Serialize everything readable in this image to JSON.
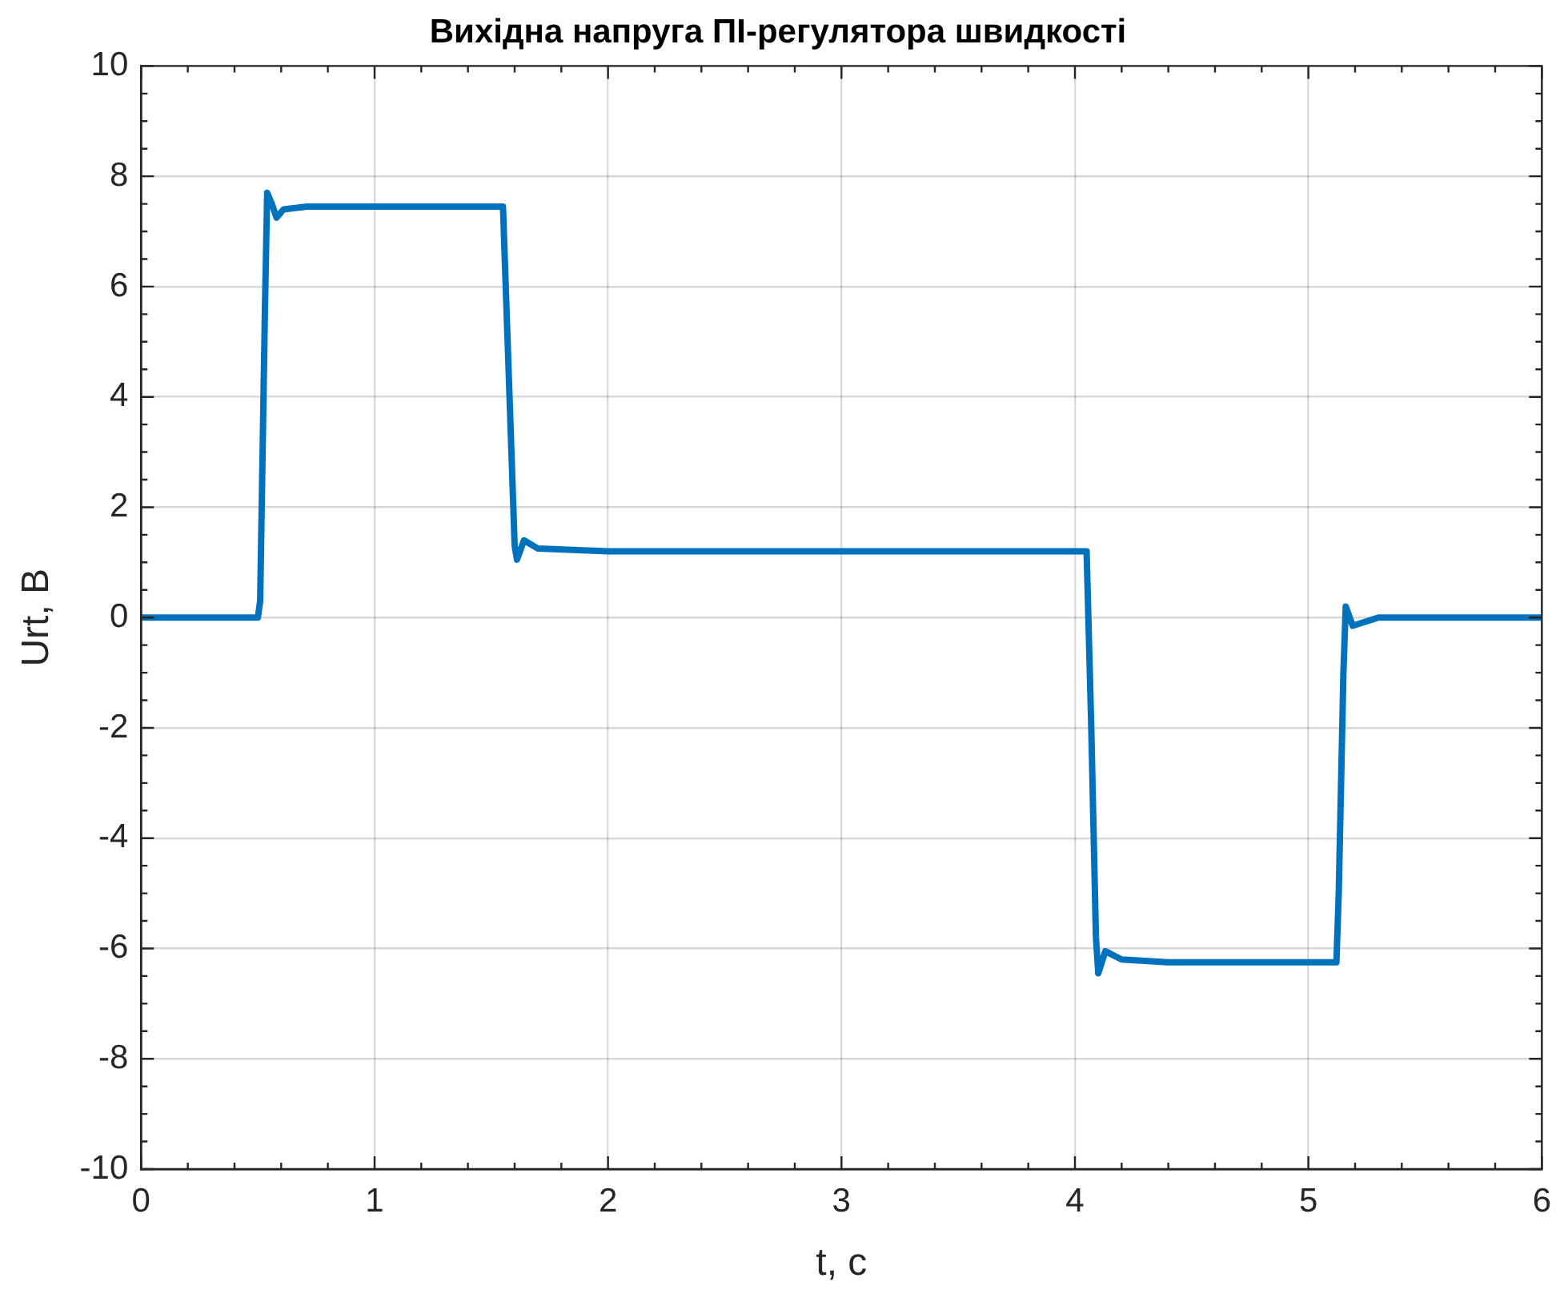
{
  "chart_data": {
    "type": "line",
    "title": "Вихідна напруга ПІ-регулятора швидкості",
    "xlabel": "t, c",
    "ylabel": "Urt, В",
    "x": [
      0,
      0.5,
      0.51,
      0.53,
      0.54,
      0.56,
      0.58,
      0.61,
      0.71,
      1.0,
      1.55,
      1.57,
      1.6,
      1.61,
      1.64,
      1.7,
      2.0,
      3.0,
      4.05,
      4.07,
      4.09,
      4.1,
      4.13,
      4.2,
      4.4,
      5.12,
      5.13,
      5.15,
      5.16,
      5.19,
      5.3,
      6
    ],
    "series": [
      {
        "color": "#0072bd",
        "values": [
          0,
          0,
          0.3,
          5.5,
          7.7,
          7.5,
          7.25,
          7.4,
          7.45,
          7.45,
          7.45,
          5.0,
          1.3,
          1.05,
          1.4,
          1.25,
          1.2,
          1.2,
          1.2,
          -2.0,
          -5.8,
          -6.45,
          -6.05,
          -6.2,
          -6.25,
          -6.25,
          -5.0,
          -1.0,
          0.2,
          -0.15,
          0,
          0
        ]
      }
    ],
    "xlim": [
      0,
      6
    ],
    "xticks": [
      0,
      1,
      2,
      3,
      4,
      5,
      6
    ],
    "ylim": [
      -10,
      10
    ],
    "yticks": [
      -10,
      -8,
      -6,
      -4,
      -2,
      0,
      2,
      4,
      6,
      8,
      10
    ],
    "grid": true,
    "legend": false,
    "marker": "none",
    "line_style": "solid"
  }
}
